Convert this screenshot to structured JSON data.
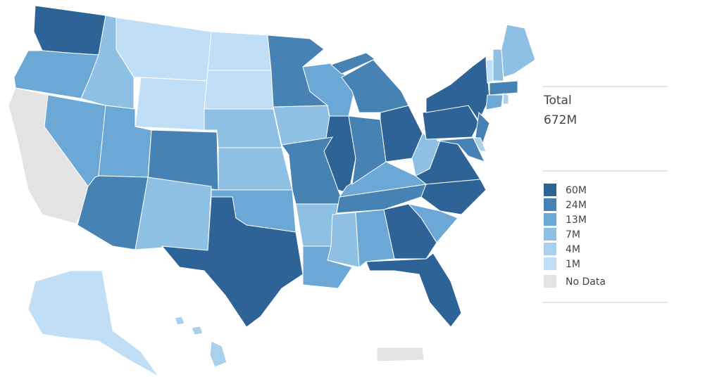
{
  "summary": {
    "label": "Total",
    "value": "672M"
  },
  "legend": {
    "items": [
      {
        "label": "60M",
        "color": "#2d6397"
      },
      {
        "label": "24M",
        "color": "#4682b4"
      },
      {
        "label": "13M",
        "color": "#6ba8d6"
      },
      {
        "label": "7M",
        "color": "#8ec0e3"
      },
      {
        "label": "4M",
        "color": "#a9d1ee"
      },
      {
        "label": "1M",
        "color": "#c0def5"
      }
    ],
    "no_data": {
      "label": "No Data",
      "color": "#e3e3e3"
    }
  }
}
